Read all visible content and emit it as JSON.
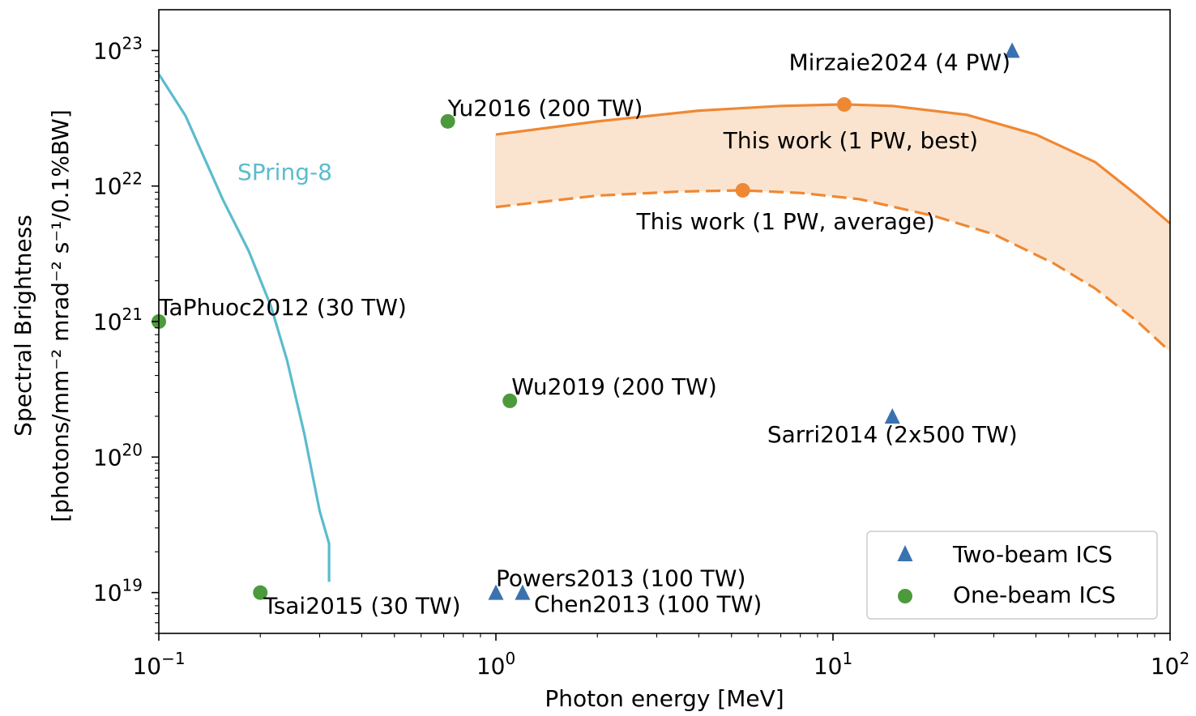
{
  "chart_data": {
    "type": "scatter",
    "xscale": "log",
    "yscale": "log",
    "xlim": [
      0.1,
      100
    ],
    "ylim": [
      5e+18,
      2e+23
    ],
    "xlabel": "Photon energy [MeV]",
    "ylabel_line1": "Spectral Brightness",
    "ylabel_line2": "[photons/mm⁻² mrad⁻² s⁻¹/0.1%BW]",
    "x_ticks": [
      {
        "value": 0.1,
        "base": "10",
        "exp": "−1"
      },
      {
        "value": 1,
        "base": "10",
        "exp": "0"
      },
      {
        "value": 10,
        "base": "10",
        "exp": "1"
      },
      {
        "value": 100,
        "base": "10",
        "exp": "2"
      }
    ],
    "y_ticks": [
      {
        "value": 1e+19,
        "base": "10",
        "exp": "19"
      },
      {
        "value": 1e+20,
        "base": "10",
        "exp": "20"
      },
      {
        "value": 1e+21,
        "base": "10",
        "exp": "21"
      },
      {
        "value": 1e+22,
        "base": "10",
        "exp": "22"
      },
      {
        "value": 1e+23,
        "base": "10",
        "exp": "23"
      }
    ],
    "colors": {
      "two_beam": "#3a72b0",
      "one_beam": "#4c9a3c",
      "spring8": "#5bbccd",
      "this_work": "#ef8833",
      "band_fill": "#fbe4cf",
      "legend_border": "#cccccc"
    },
    "series": [
      {
        "name": "Two-beam ICS",
        "marker": "triangle",
        "points": [
          {
            "label": "Mirzaie2024 (4 PW)",
            "x": 34,
            "y": 1e+23
          },
          {
            "label": "Sarri2014 (2x500 TW)",
            "x": 15,
            "y": 2e+20
          },
          {
            "label": "Powers2013 (100 TW)",
            "x": 1.0,
            "y": 1e+19
          },
          {
            "label": "Chen2013 (100 TW)",
            "x": 1.2,
            "y": 1e+19
          }
        ]
      },
      {
        "name": "One-beam ICS",
        "marker": "circle",
        "points": [
          {
            "label": "Yu2016 (200 TW)",
            "x": 0.72,
            "y": 3e+22
          },
          {
            "label": "TaPhuoc2012 (30 TW)",
            "x": 0.1,
            "y": 1e+21
          },
          {
            "label": "Wu2019 (200 TW)",
            "x": 1.1,
            "y": 2.6e+20
          },
          {
            "label": "Tsai2015 (30 TW)",
            "x": 0.2,
            "y": 1e+19
          }
        ]
      }
    ],
    "spring8": {
      "label": "SPring-8",
      "x": [
        0.1,
        0.12,
        0.155,
        0.185,
        0.215,
        0.24,
        0.27,
        0.3,
        0.32,
        0.32
      ],
      "y": [
        6.7e+22,
        3.3e+22,
        7.9e+21,
        3.3e+21,
        1.3e+21,
        5.2e+20,
        1.5e+20,
        4e+19,
        2.3e+19,
        1.2e+19
      ]
    },
    "this_work_best": {
      "label": "This work (1 PW, best)",
      "marker_x": 10.8,
      "marker_y": 4e+22,
      "x": [
        1,
        2,
        4,
        7,
        10.8,
        15,
        25,
        40,
        60,
        80,
        100
      ],
      "y": [
        2.4e+22,
        3e+22,
        3.6e+22,
        3.9e+22,
        4e+22,
        3.9e+22,
        3.35e+22,
        2.4e+22,
        1.5e+22,
        8.5e+21,
        5.3e+21
      ]
    },
    "this_work_average": {
      "label": "This work (1 PW, average)",
      "marker_x": 5.4,
      "marker_y": 9.3e+21,
      "x": [
        1,
        2,
        3.5,
        5.4,
        8,
        12,
        20,
        30,
        45,
        60,
        80,
        100
      ],
      "y": [
        7e+21,
        8.5e+21,
        9.1e+21,
        9.3e+21,
        8.9e+21,
        8e+21,
        6e+21,
        4.4e+21,
        2.7e+21,
        1.75e+21,
        1e+21,
        6e+20
      ]
    },
    "legend": {
      "position": "bottom-right",
      "entries": [
        "Two-beam ICS",
        "One-beam ICS"
      ]
    }
  }
}
